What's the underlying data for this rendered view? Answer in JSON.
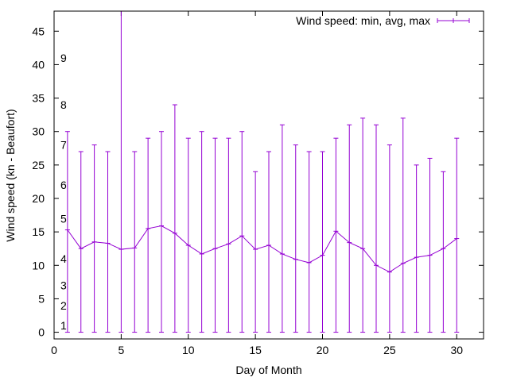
{
  "chart_data": {
    "type": "line",
    "xlabel": "Day of Month",
    "ylabel": "Wind speed (kn - Beaufort)",
    "xlim": [
      0,
      32
    ],
    "ylim": [
      -1,
      48
    ],
    "x_ticks": [
      0,
      5,
      10,
      15,
      20,
      25,
      30
    ],
    "y_ticks": [
      0,
      5,
      10,
      15,
      20,
      25,
      30,
      35,
      40,
      45
    ],
    "grid": false,
    "legend_position": "top-right",
    "series": [
      {
        "name": "Wind speed: min, avg, max",
        "color": "#9400d3",
        "style": "error bars with line through averages",
        "points": [
          {
            "x": 1,
            "min": 0,
            "avg": 15.3,
            "max": 30
          },
          {
            "x": 2,
            "min": 0,
            "avg": 12.5,
            "max": 27
          },
          {
            "x": 3,
            "min": 0,
            "avg": 13.5,
            "max": 28
          },
          {
            "x": 4,
            "min": 0,
            "avg": 13.3,
            "max": 27
          },
          {
            "x": 5,
            "min": 0,
            "avg": 12.4,
            "max": 48
          },
          {
            "x": 6,
            "min": 0,
            "avg": 12.6,
            "max": 27
          },
          {
            "x": 7,
            "min": 0,
            "avg": 15.5,
            "max": 29
          },
          {
            "x": 8,
            "min": 0,
            "avg": 15.9,
            "max": 30
          },
          {
            "x": 9,
            "min": 0,
            "avg": 14.8,
            "max": 34
          },
          {
            "x": 10,
            "min": 0,
            "avg": 13,
            "max": 29
          },
          {
            "x": 11,
            "min": 0,
            "avg": 11.7,
            "max": 30
          },
          {
            "x": 12,
            "min": 0,
            "avg": 12.5,
            "max": 29
          },
          {
            "x": 13,
            "min": 0,
            "avg": 13.2,
            "max": 29
          },
          {
            "x": 14,
            "min": 0,
            "avg": 14.4,
            "max": 30
          },
          {
            "x": 15,
            "min": 0,
            "avg": 12.4,
            "max": 24
          },
          {
            "x": 16,
            "min": 0,
            "avg": 13,
            "max": 27
          },
          {
            "x": 17,
            "min": 0,
            "avg": 11.7,
            "max": 31
          },
          {
            "x": 18,
            "min": 0,
            "avg": 10.9,
            "max": 28
          },
          {
            "x": 19,
            "min": 0,
            "avg": 10.4,
            "max": 27
          },
          {
            "x": 20,
            "min": 0,
            "avg": 11.5,
            "max": 27
          },
          {
            "x": 21,
            "min": 0,
            "avg": 15.1,
            "max": 29
          },
          {
            "x": 22,
            "min": 0,
            "avg": 13.4,
            "max": 31
          },
          {
            "x": 23,
            "min": 0,
            "avg": 12.5,
            "max": 32
          },
          {
            "x": 24,
            "min": 0,
            "avg": 10,
            "max": 31
          },
          {
            "x": 25,
            "min": 0,
            "avg": 9,
            "max": 28
          },
          {
            "x": 26,
            "min": 0,
            "avg": 10.3,
            "max": 32
          },
          {
            "x": 27,
            "min": 0,
            "avg": 11.2,
            "max": 25
          },
          {
            "x": 28,
            "min": 0,
            "avg": 11.5,
            "max": 26
          },
          {
            "x": 29,
            "min": 0,
            "avg": 12.5,
            "max": 24
          },
          {
            "x": 30,
            "min": 0,
            "avg": 14,
            "max": 29
          }
        ]
      }
    ],
    "beaufort_labels": [
      {
        "label": "1",
        "y": 1
      },
      {
        "label": "2",
        "y": 4
      },
      {
        "label": "3",
        "y": 7
      },
      {
        "label": "4",
        "y": 11
      },
      {
        "label": "5",
        "y": 17
      },
      {
        "label": "6",
        "y": 22
      },
      {
        "label": "7",
        "y": 28
      },
      {
        "label": "8",
        "y": 34
      },
      {
        "label": "9",
        "y": 41
      }
    ]
  }
}
